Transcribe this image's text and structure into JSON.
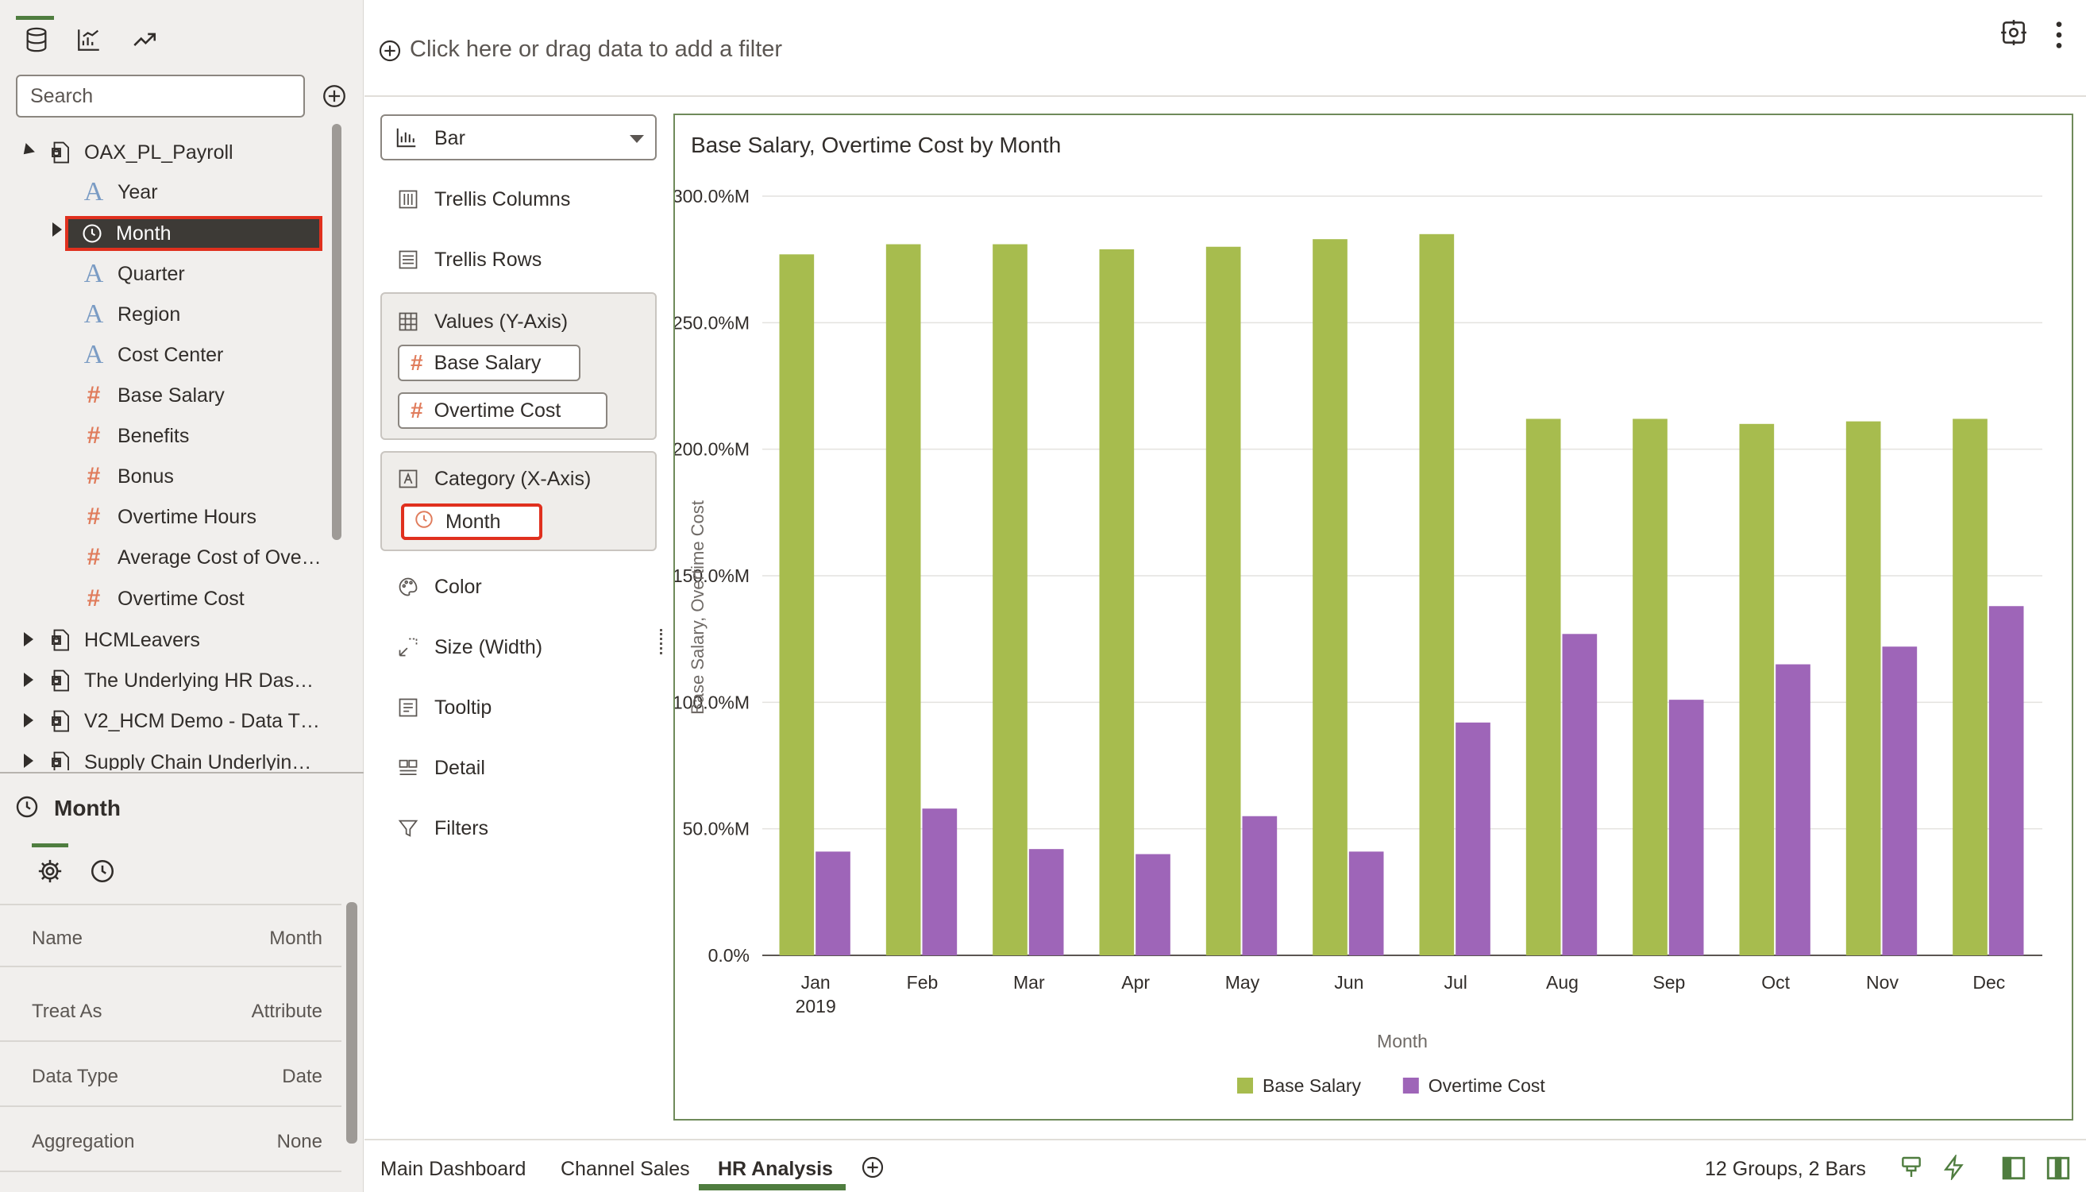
{
  "data_panel": {
    "tabs": [
      {
        "name": "data-tab",
        "icon": "database-icon"
      },
      {
        "name": "visualizations-tab",
        "icon": "chart-icon"
      },
      {
        "name": "analytics-tab",
        "icon": "trend-icon"
      }
    ],
    "search": {
      "placeholder": "Search",
      "value": ""
    },
    "datasets": [
      {
        "label": "OAX_PL_Payroll",
        "expanded": true,
        "columns": [
          {
            "label": "Year",
            "type": "attribute"
          },
          {
            "label": "Month",
            "type": "time",
            "selected": true
          },
          {
            "label": "Quarter",
            "type": "attribute"
          },
          {
            "label": "Region",
            "type": "attribute"
          },
          {
            "label": "Cost Center",
            "type": "attribute"
          },
          {
            "label": "Base Salary",
            "type": "measure"
          },
          {
            "label": "Benefits",
            "type": "measure"
          },
          {
            "label": "Bonus",
            "type": "measure"
          },
          {
            "label": "Overtime Hours",
            "type": "measure"
          },
          {
            "label": "Average Cost of Ove…",
            "type": "measure"
          },
          {
            "label": "Overtime Cost",
            "type": "measure"
          }
        ]
      },
      {
        "label": "HCMLeavers",
        "expanded": false
      },
      {
        "label": "The Underlying HR Das…",
        "expanded": false
      },
      {
        "label": "V2_HCM Demo - Data T…",
        "expanded": false
      },
      {
        "label": "Supply Chain Underlyin…",
        "expanded": false
      }
    ]
  },
  "properties": {
    "title": "Month",
    "rows": [
      {
        "label": "Name",
        "value": "Month"
      },
      {
        "label": "Treat As",
        "value": "Attribute"
      },
      {
        "label": "Data Type",
        "value": "Date"
      },
      {
        "label": "Aggregation",
        "value": "None"
      }
    ]
  },
  "filter_bar": {
    "placeholder": "Click here or drag data to add a filter"
  },
  "grammar": {
    "chart_type": "Bar",
    "trellis_columns": "Trellis Columns",
    "trellis_rows": "Trellis Rows",
    "values_label": "Values (Y-Axis)",
    "values_pills": [
      "Base Salary",
      "Overtime Cost"
    ],
    "category_label": "Category (X-Axis)",
    "category_pills": [
      "Month"
    ],
    "color": "Color",
    "size": "Size (Width)",
    "tooltip": "Tooltip",
    "detail": "Detail",
    "filters": "Filters"
  },
  "chart_data": {
    "type": "bar",
    "title": "Base Salary, Overtime Cost by Month",
    "xlabel": "Month",
    "ylabel": "Base Salary, Overtime Cost",
    "categories": [
      "Jan",
      "Feb",
      "Mar",
      "Apr",
      "May",
      "Jun",
      "Jul",
      "Aug",
      "Sep",
      "Oct",
      "Nov",
      "Dec"
    ],
    "category_sublabel": {
      "Jan": "2019"
    },
    "ylim": [
      0,
      300
    ],
    "yticks": [
      "0.0%",
      "50.0%M",
      "100.0%M",
      "150.0%M",
      "200.0%M",
      "250.0%M",
      "300.0%M"
    ],
    "series": [
      {
        "name": "Base Salary",
        "color": "#a7bc4e",
        "values": [
          277,
          281,
          281,
          279,
          280,
          283,
          285,
          212,
          212,
          210,
          211,
          212
        ]
      },
      {
        "name": "Overtime Cost",
        "color": "#9e65b8",
        "values": [
          41,
          58,
          42,
          40,
          55,
          41,
          92,
          127,
          101,
          115,
          122,
          138
        ]
      }
    ],
    "legend": "bottom",
    "grid": true
  },
  "bottom_bar": {
    "tabs": [
      "Main Dashboard",
      "Channel Sales",
      "HR Analysis"
    ],
    "active_tab": "HR Analysis",
    "status": "12 Groups, 2 Bars"
  },
  "colors": {
    "accent": "#4f7d3f",
    "highlight": "#e0301e",
    "base_salary": "#a7bc4e",
    "overtime_cost": "#9e65b8"
  }
}
